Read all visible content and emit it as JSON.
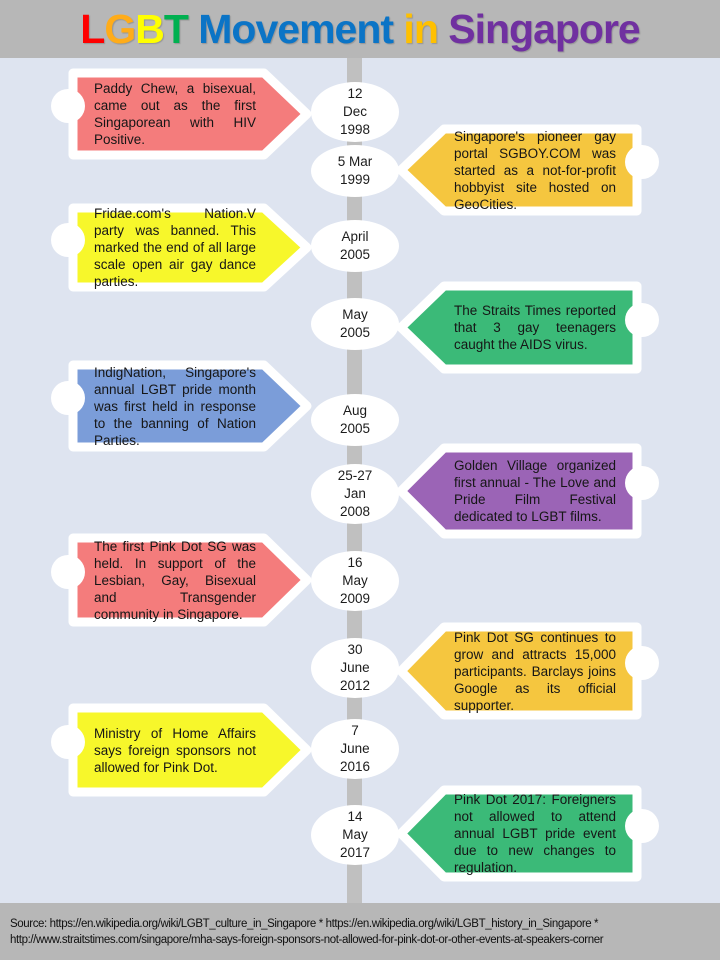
{
  "page": {
    "background_color": "#dee4f0",
    "band_gray": "#b7b7b7",
    "timeline_bar_gray": "#c0c0c0"
  },
  "title": {
    "full_text": "LGBT Movement in Singapore",
    "segments": [
      {
        "text": "L",
        "color": "#ff0000"
      },
      {
        "text": "G",
        "color": "#ffac19"
      },
      {
        "text": "B",
        "color": "#ffff00"
      },
      {
        "text": "T",
        "color": "#00b050"
      },
      {
        "text": " Movement ",
        "color": "#0b74c6"
      },
      {
        "text": "in",
        "color": "#ffc000"
      },
      {
        "text": " Singapore",
        "color": "#7030a0"
      }
    ]
  },
  "timeline": {
    "events": [
      {
        "side": "left",
        "color": "#f47c7c",
        "date_lines": [
          "12",
          "Dec",
          "1998"
        ],
        "description": "Paddy Chew, a bisexual, came out as the first Singaporean with HIV Positive."
      },
      {
        "side": "right",
        "color": "#f5c63f",
        "date_lines": [
          "5 Mar",
          "1999"
        ],
        "description": "Singapore's pioneer gay portal SGBOY.COM was started as a not-for-profit hobbyist site hosted on GeoCities."
      },
      {
        "side": "left",
        "color": "#f7f72b",
        "date_lines": [
          "April",
          "2005"
        ],
        "description": "Fridae.com's Nation.V party was banned. This marked the end of all large scale open air gay dance parties."
      },
      {
        "side": "right",
        "color": "#3bba78",
        "date_lines": [
          "May",
          "2005"
        ],
        "description": "The Straits Times reported that 3 gay teenagers caught the AIDS virus."
      },
      {
        "side": "left",
        "color": "#7b9dd9",
        "date_lines": [
          "Aug",
          "2005"
        ],
        "description": "IndigNation, Singapore's annual LGBT pride month was first held in response to the banning of Nation Parties."
      },
      {
        "side": "right",
        "color": "#9b64b6",
        "date_lines": [
          "25-27",
          "Jan",
          "2008"
        ],
        "description": "Golden Village organized first annual - The Love and Pride Film Festival dedicated to LGBT films."
      },
      {
        "side": "left",
        "color": "#f47c7c",
        "date_lines": [
          "16",
          "May",
          "2009"
        ],
        "description": "The first Pink Dot SG was held. In support of the Lesbian, Gay, Bisexual and Transgender community in Singapore."
      },
      {
        "side": "right",
        "color": "#f5c63f",
        "date_lines": [
          "30",
          "June",
          "2012"
        ],
        "description": "Pink Dot SG continues to grow and attracts 15,000 participants. Barclays joins Google as its official supporter."
      },
      {
        "side": "left",
        "color": "#f7f72b",
        "date_lines": [
          "7",
          "June",
          "2016"
        ],
        "description": "Ministry of Home Affairs  says foreign sponsors not allowed for Pink Dot."
      },
      {
        "side": "right",
        "color": "#3bba78",
        "date_lines": [
          "14",
          "May",
          "2017"
        ],
        "description": "Pink Dot 2017: Foreigners  not allowed to attend annual LGBT pride event due to new changes to regulation."
      }
    ]
  },
  "footer": {
    "line1": "Source: https://en.wikipedia.org/wiki/LGBT_culture_in_Singapore * https://en.wikipedia.org/wiki/LGBT_history_in_Singapore *",
    "line2": "http://www.straitstimes.com/singapore/mha-says-foreign-sponsors-not-allowed-for-pink-dot-or-other-events-at-speakers-corner"
  }
}
